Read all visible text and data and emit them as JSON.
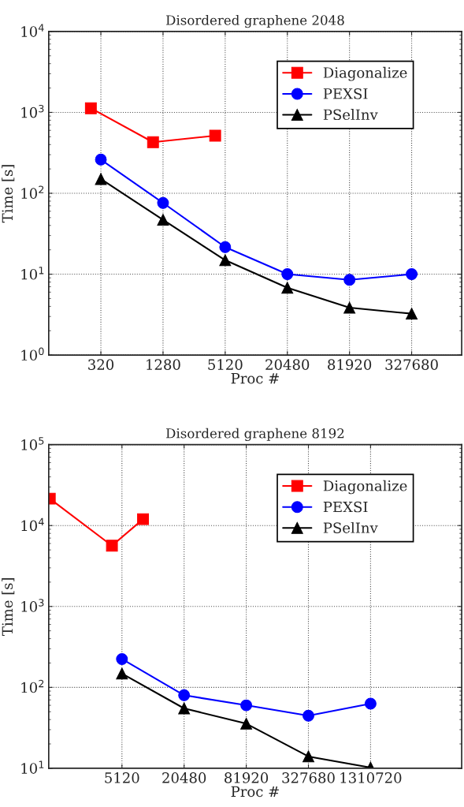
{
  "chart_data": [
    {
      "type": "line",
      "title": "Disordered graphene 2048",
      "xlabel": "Proc #",
      "ylabel": "Time [s]",
      "log": "xy",
      "grid": true,
      "legend": "top right",
      "line_style": "solid",
      "xlim": [
        100,
        1000000
      ],
      "xticks": [
        320,
        1280,
        5120,
        20480,
        81920,
        327680
      ],
      "ylim": [
        1,
        10000
      ],
      "yticks": [
        {
          "value": 1,
          "label": "10$^{0}$"
        },
        {
          "value": 10,
          "label": "10$^{1}$"
        },
        {
          "value": 100,
          "label": "10$^{2}$"
        },
        {
          "value": 1000,
          "label": "10$^{3}$"
        },
        {
          "value": 10000,
          "label": "10$^{4}$"
        }
      ],
      "series": [
        {
          "name": "Diagonalize",
          "color": "#ff0000",
          "marker": "square",
          "x": [
            256,
            1024,
            4096
          ],
          "values": [
            1125,
            428,
            515
          ]
        },
        {
          "name": "PEXSI",
          "color": "#0000ff",
          "marker": "circle",
          "x": [
            320,
            1280,
            5120,
            20480,
            81920,
            327680
          ],
          "values": [
            261,
            76,
            21.6,
            10,
            8.5,
            10
          ]
        },
        {
          "name": "PSelInv",
          "color": "#000000",
          "marker": "triangle",
          "x": [
            320,
            1280,
            5120,
            20480,
            81920,
            327680
          ],
          "values": [
            150,
            47,
            14.9,
            6.8,
            3.85,
            3.25
          ]
        }
      ]
    },
    {
      "type": "line",
      "title": "Disordered graphene 8192",
      "xlabel": "Proc #",
      "ylabel": "Time [s]",
      "log": "xy",
      "grid": true,
      "legend": "top right",
      "line_style": "solid",
      "xlim": [
        1000,
        10000000
      ],
      "xticks": [
        5120,
        20480,
        81920,
        327680,
        1310720
      ],
      "ylim": [
        10,
        100000
      ],
      "yticks": [
        {
          "value": 10,
          "label": "10$^{1}$"
        },
        {
          "value": 100,
          "label": "10$^{2}$"
        },
        {
          "value": 1000,
          "label": "10$^{3}$"
        },
        {
          "value": 10000,
          "label": "10$^{4}$"
        },
        {
          "value": 100000,
          "label": "10$^{5}$"
        }
      ],
      "series": [
        {
          "name": "Diagonalize",
          "color": "#ff0000",
          "marker": "square",
          "x": [
            1024,
            4096,
            8192
          ],
          "values": [
            21500,
            5640,
            12000
          ]
        },
        {
          "name": "PEXSI",
          "color": "#0000ff",
          "marker": "circle",
          "x": [
            5120,
            20480,
            81920,
            327680,
            1310720
          ],
          "values": [
            224,
            80,
            60,
            44.7,
            63
          ]
        },
        {
          "name": "PSelInv",
          "color": "#000000",
          "marker": "triangle",
          "x": [
            5120,
            20480,
            81920,
            327680,
            1310720
          ],
          "values": [
            148,
            55,
            35.6,
            14,
            10.2
          ]
        }
      ]
    }
  ]
}
